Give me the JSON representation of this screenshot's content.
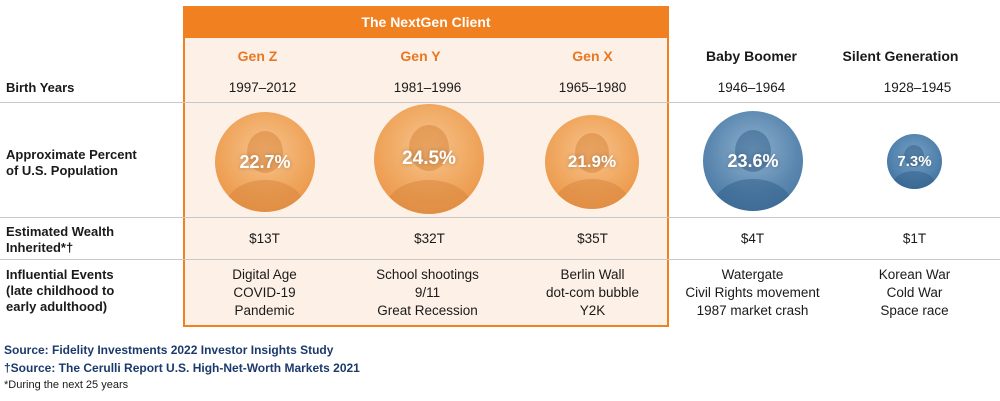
{
  "header": {
    "title": "The NextGen Client"
  },
  "generations": [
    {
      "name": "Gen Z",
      "birth_years": "1997–2012",
      "percent": "22.7%",
      "wealth": "$13T",
      "events": [
        "Digital Age",
        "COVID-19",
        "Pandemic"
      ]
    },
    {
      "name": "Gen Y",
      "birth_years": "1981–1996",
      "percent": "24.5%",
      "wealth": "$32T",
      "events": [
        "School shootings",
        "9/11",
        "Great Recession"
      ]
    },
    {
      "name": "Gen X",
      "birth_years": "1965–1980",
      "percent": "21.9%",
      "wealth": "$35T",
      "events": [
        "Berlin Wall",
        "dot-com bubble",
        "Y2K"
      ]
    },
    {
      "name": "Baby Boomer",
      "birth_years": "1946–1964",
      "percent": "23.6%",
      "wealth": "$4T",
      "events": [
        "Watergate",
        "Civil Rights movement",
        "1987 market crash"
      ]
    },
    {
      "name": "Silent Generation",
      "birth_years": "1928–1945",
      "percent": "7.3%",
      "wealth": "$1T",
      "events": [
        "Korean War",
        "Cold War",
        "Space race"
      ]
    }
  ],
  "row_labels": {
    "birth_years": "Birth Years",
    "population_line1": "Approximate Percent",
    "population_line2": "of U.S. Population",
    "wealth_line1": "Estimated Wealth",
    "wealth_line2": "Inherited*†",
    "events_line1": "Influential Events",
    "events_line2": "(late childhood to",
    "events_line3": "early adulthood)"
  },
  "footnotes": {
    "source1": "Source: Fidelity Investments 2022 Investor Insights Study",
    "source2": "†Source: The Cerulli Report U.S. High-Net-Worth Markets 2021",
    "note": "*During the next 25 years"
  },
  "colors": {
    "accent_orange": "#f08020",
    "nextgen_bg": "#fdf0e6",
    "boomer_blue": "#3d6e9a",
    "source_navy": "#1b3a6b"
  }
}
